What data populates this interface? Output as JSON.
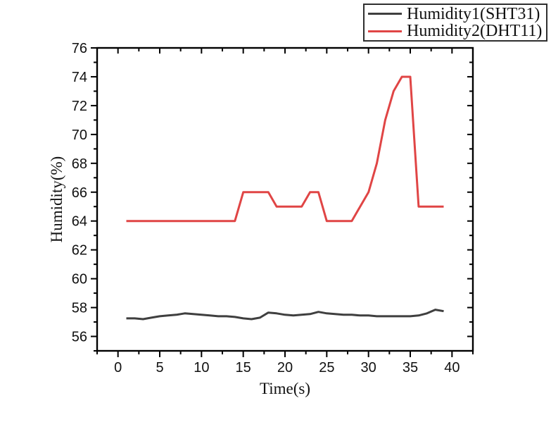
{
  "background": "#ffffff",
  "text_color": "#111111",
  "axis_color": "#000000",
  "legend": {
    "border_color": "#2f2f2f",
    "position": "top-right"
  },
  "chart_data": {
    "type": "line",
    "title": "",
    "xlabel": "Time(s)",
    "ylabel": "Humidity(%)",
    "xlim": [
      -2.5,
      42.5
    ],
    "ylim": [
      55,
      76
    ],
    "x_major_ticks": [
      0,
      5,
      10,
      15,
      20,
      25,
      30,
      35,
      40
    ],
    "x_minor_step": 2.5,
    "y_major_ticks": [
      56,
      58,
      60,
      62,
      64,
      66,
      68,
      70,
      72,
      74,
      76
    ],
    "y_minor_step": 1,
    "grid": false,
    "legend_position": "top-right",
    "x": [
      1,
      2,
      3,
      4,
      5,
      6,
      7,
      8,
      9,
      10,
      11,
      12,
      13,
      14,
      15,
      16,
      17,
      18,
      19,
      20,
      21,
      22,
      23,
      24,
      25,
      26,
      27,
      28,
      29,
      30,
      31,
      32,
      33,
      34,
      35,
      36,
      37,
      38,
      39
    ],
    "series": [
      {
        "name": "Humidity1(SHT31)",
        "color": "#3f3f3f",
        "values": [
          57.25,
          57.25,
          57.2,
          57.3,
          57.4,
          57.45,
          57.5,
          57.6,
          57.55,
          57.5,
          57.45,
          57.4,
          57.4,
          57.35,
          57.25,
          57.2,
          57.3,
          57.65,
          57.6,
          57.5,
          57.45,
          57.5,
          57.55,
          57.7,
          57.6,
          57.55,
          57.5,
          57.5,
          57.45,
          57.45,
          57.4,
          57.4,
          57.4,
          57.4,
          57.4,
          57.45,
          57.6,
          57.85,
          57.75
        ]
      },
      {
        "name": "Humidity2(DHT11)",
        "color": "#e04545",
        "values": [
          64,
          64,
          64,
          64,
          64,
          64,
          64,
          64,
          64,
          64,
          64,
          64,
          64,
          64,
          66,
          66,
          66,
          66,
          65,
          65,
          65,
          65,
          66,
          66,
          64,
          64,
          64,
          64,
          65,
          66,
          68,
          71,
          73,
          74,
          74,
          65,
          65,
          65,
          65
        ]
      }
    ]
  }
}
